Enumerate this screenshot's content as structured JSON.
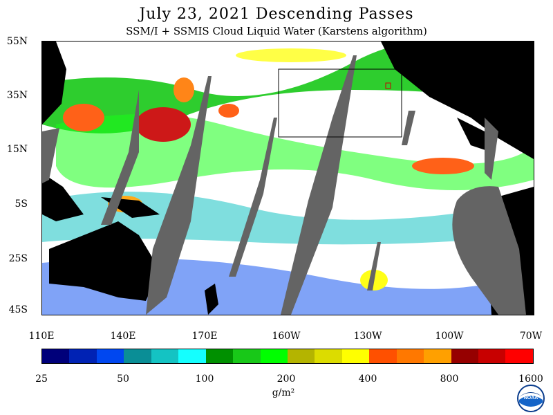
{
  "title": "July 23, 2021  Descending Passes",
  "subtitle": "SSM/I + SSMIS Cloud Liquid Water (Karstens algorithm)",
  "y_axis": [
    "55N",
    "35N",
    "15N",
    "5S",
    "25S",
    "45S"
  ],
  "x_axis": [
    "110E",
    "140E",
    "170E",
    "160W",
    "130W",
    "100W",
    "70W"
  ],
  "colorbar": {
    "labels": [
      "25",
      "50",
      "100",
      "200",
      "400",
      "800",
      "1600"
    ],
    "units": "g/m²",
    "colors": [
      "#00007a",
      "#0022b4",
      "#0047f0",
      "#0a8e96",
      "#14c3c3",
      "#14ffff",
      "#009000",
      "#18c818",
      "#00ff00",
      "#b4b400",
      "#dcdc00",
      "#ffff00",
      "#ff5000",
      "#ff7800",
      "#ffa000",
      "#960000",
      "#c80000",
      "#ff0000"
    ]
  },
  "map": {
    "land_color": "#000000",
    "no_data_color": "#646464"
  },
  "logo": {
    "text": "NOAA"
  }
}
